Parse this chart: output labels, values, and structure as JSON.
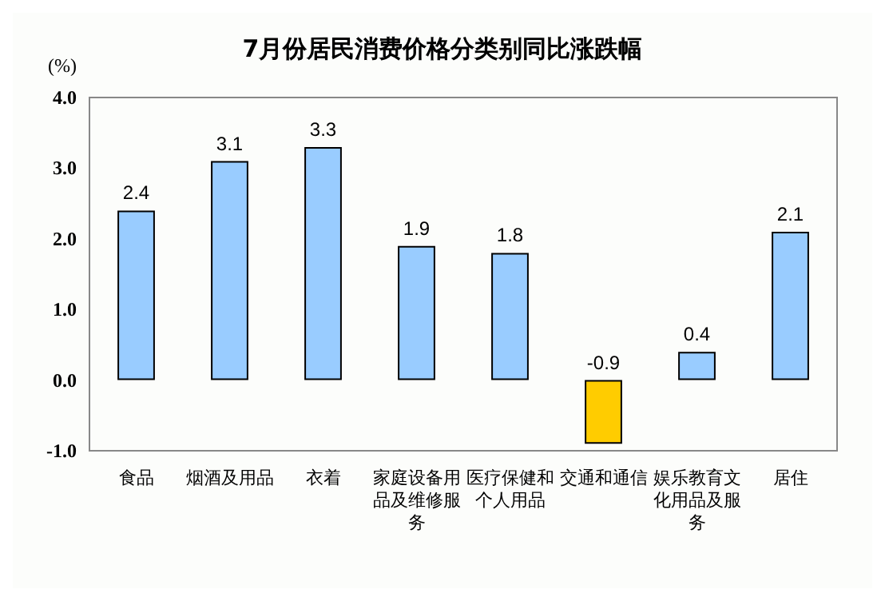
{
  "chart_data": {
    "type": "bar",
    "title": "7月份居民消费价格分类别同比涨跌幅",
    "ylabel": "(%)",
    "categories": [
      "食品",
      "烟酒及用品",
      "衣着",
      "家庭设备用品及维修服务",
      "医疗保健和个人用品",
      "交通和通信",
      "娱乐教育文化用品及服务",
      "居住"
    ],
    "values": [
      2.4,
      3.1,
      3.3,
      1.9,
      1.8,
      -0.9,
      0.4,
      2.1
    ],
    "colors": [
      "#99ccff",
      "#99ccff",
      "#99ccff",
      "#99ccff",
      "#99ccff",
      "#ffcc00",
      "#99ccff",
      "#99ccff"
    ],
    "ylim": [
      -1,
      4
    ],
    "yticks": [
      {
        "value": -1,
        "label": "-1.0"
      },
      {
        "value": 0,
        "label": "0.0"
      },
      {
        "value": 1,
        "label": "1.0"
      },
      {
        "value": 2,
        "label": "2.0"
      },
      {
        "value": 3,
        "label": "3.0"
      },
      {
        "value": 4,
        "label": "4.0"
      }
    ],
    "data_labels": true,
    "grid": false
  }
}
